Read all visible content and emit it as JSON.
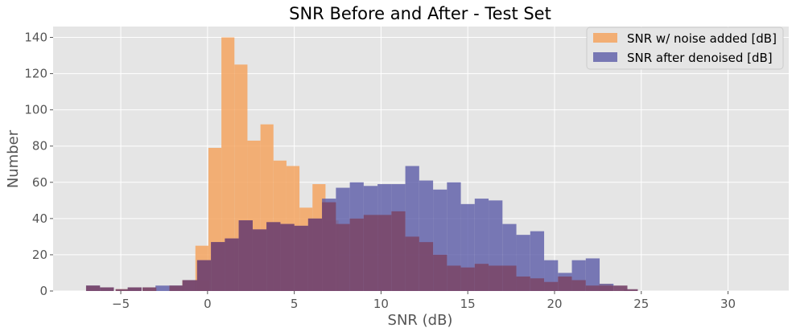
{
  "chart_data": {
    "type": "bar",
    "title": "SNR Before and After - Test Set",
    "xlabel": "SNR (dB)",
    "ylabel": "Number",
    "xlim": [
      -8.9,
      33.5
    ],
    "ylim": [
      0,
      146
    ],
    "x_ticks": [
      -5,
      0,
      5,
      10,
      15,
      20,
      25,
      30
    ],
    "y_ticks": [
      0,
      20,
      40,
      60,
      80,
      100,
      120,
      140
    ],
    "grid": true,
    "legend_position": "top-right",
    "background": "#e5e5e5",
    "series": [
      {
        "name": "SNR w/ noise added [dB]",
        "color": "#f4a460",
        "opacity": 0.85,
        "bins": [
          [
            -5.3,
            1
          ],
          [
            -3.75,
            2
          ],
          [
            -2.2,
            2
          ],
          [
            -1.45,
            6
          ],
          [
            -0.7,
            25
          ],
          [
            0.05,
            79
          ],
          [
            0.8,
            140
          ],
          [
            1.55,
            125
          ],
          [
            2.3,
            83
          ],
          [
            3.05,
            92
          ],
          [
            3.8,
            72
          ],
          [
            4.55,
            69
          ],
          [
            5.3,
            46
          ],
          [
            6.05,
            59
          ],
          [
            6.8,
            39
          ],
          [
            22.55,
            4
          ]
        ],
        "bin_width": 0.75
      },
      {
        "name": "SNR after denoised [dB]",
        "color": "#5b5ba8",
        "opacity": 0.8,
        "bins": [
          [
            -7.0,
            3
          ],
          [
            -6.2,
            2
          ],
          [
            -4.6,
            2
          ],
          [
            -3.0,
            3
          ],
          [
            -2.2,
            3
          ],
          [
            -1.4,
            6
          ],
          [
            -0.6,
            17
          ],
          [
            0.2,
            27
          ],
          [
            1.0,
            29
          ],
          [
            1.8,
            39
          ],
          [
            2.6,
            34
          ],
          [
            3.4,
            38
          ],
          [
            4.2,
            37
          ],
          [
            5.0,
            36
          ],
          [
            5.8,
            40
          ],
          [
            6.6,
            51
          ],
          [
            7.4,
            57
          ],
          [
            8.2,
            60
          ],
          [
            9.0,
            58
          ],
          [
            9.8,
            59
          ],
          [
            10.6,
            59
          ],
          [
            11.4,
            69
          ],
          [
            12.2,
            61
          ],
          [
            13.0,
            56
          ],
          [
            13.8,
            60
          ],
          [
            14.6,
            48
          ],
          [
            15.4,
            51
          ],
          [
            16.2,
            50
          ],
          [
            17.0,
            37
          ],
          [
            17.8,
            31
          ],
          [
            18.6,
            33
          ],
          [
            19.4,
            17
          ],
          [
            20.2,
            10
          ],
          [
            21.0,
            17
          ],
          [
            21.8,
            18
          ],
          [
            22.6,
            4
          ]
        ],
        "bin_width": 0.8
      }
    ],
    "overlap_color": "#7a4a6e",
    "overlap_bins": [
      [
        -7.0,
        3
      ],
      [
        -6.2,
        2
      ],
      [
        -5.3,
        1
      ],
      [
        -4.6,
        2
      ],
      [
        -3.75,
        2
      ],
      [
        -2.2,
        3
      ],
      [
        -1.45,
        6
      ],
      [
        -0.7,
        6
      ],
      [
        -0.6,
        17
      ],
      [
        0.2,
        27
      ],
      [
        1.0,
        29
      ],
      [
        1.8,
        39
      ],
      [
        2.6,
        34
      ],
      [
        3.4,
        38
      ],
      [
        4.2,
        37
      ],
      [
        5.0,
        36
      ],
      [
        5.8,
        40
      ],
      [
        6.6,
        49
      ],
      [
        7.4,
        37
      ],
      [
        8.2,
        40
      ],
      [
        9.0,
        42
      ],
      [
        9.8,
        42
      ],
      [
        10.6,
        44
      ],
      [
        11.4,
        30
      ],
      [
        12.2,
        27
      ],
      [
        13.0,
        20
      ],
      [
        13.8,
        14
      ],
      [
        14.6,
        13
      ],
      [
        15.4,
        15
      ],
      [
        16.2,
        14
      ],
      [
        17.0,
        14
      ],
      [
        17.8,
        8
      ],
      [
        18.6,
        7
      ],
      [
        19.4,
        5
      ],
      [
        20.2,
        8
      ],
      [
        21.0,
        6
      ],
      [
        21.8,
        3
      ],
      [
        22.6,
        3
      ],
      [
        23.4,
        3
      ],
      [
        24.0,
        1
      ]
    ]
  }
}
